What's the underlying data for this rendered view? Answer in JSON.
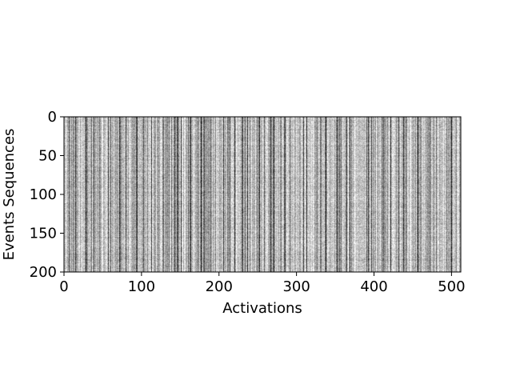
{
  "chart_data": {
    "type": "heatmap",
    "title": "",
    "xlabel": "Activations",
    "ylabel": "Events Sequences",
    "xlim": [
      0,
      512
    ],
    "ylim": [
      200,
      0
    ],
    "x_ticks": [
      0,
      100,
      200,
      300,
      400,
      500
    ],
    "y_ticks": [
      0,
      50,
      100,
      150,
      200
    ],
    "colormap": "gray",
    "colors": {
      "background": "#ffffff",
      "dominant": "#b8b8b8",
      "dark": "#1a1a1a",
      "light": "#f2f2f2"
    },
    "dark_columns": [
      14,
      27,
      38,
      56,
      71,
      93,
      112,
      131,
      142,
      146,
      150,
      159,
      163,
      176,
      188,
      205,
      219,
      230,
      236,
      251,
      266,
      270,
      284,
      308,
      312,
      337,
      352,
      364,
      368,
      392,
      396,
      421,
      431,
      437,
      456,
      471,
      479,
      499
    ],
    "light_columns": [
      22,
      48,
      84,
      118,
      152,
      166,
      196,
      241,
      288,
      321,
      359,
      366,
      402,
      446,
      489,
      507
    ],
    "grid": false,
    "legend": "none"
  }
}
